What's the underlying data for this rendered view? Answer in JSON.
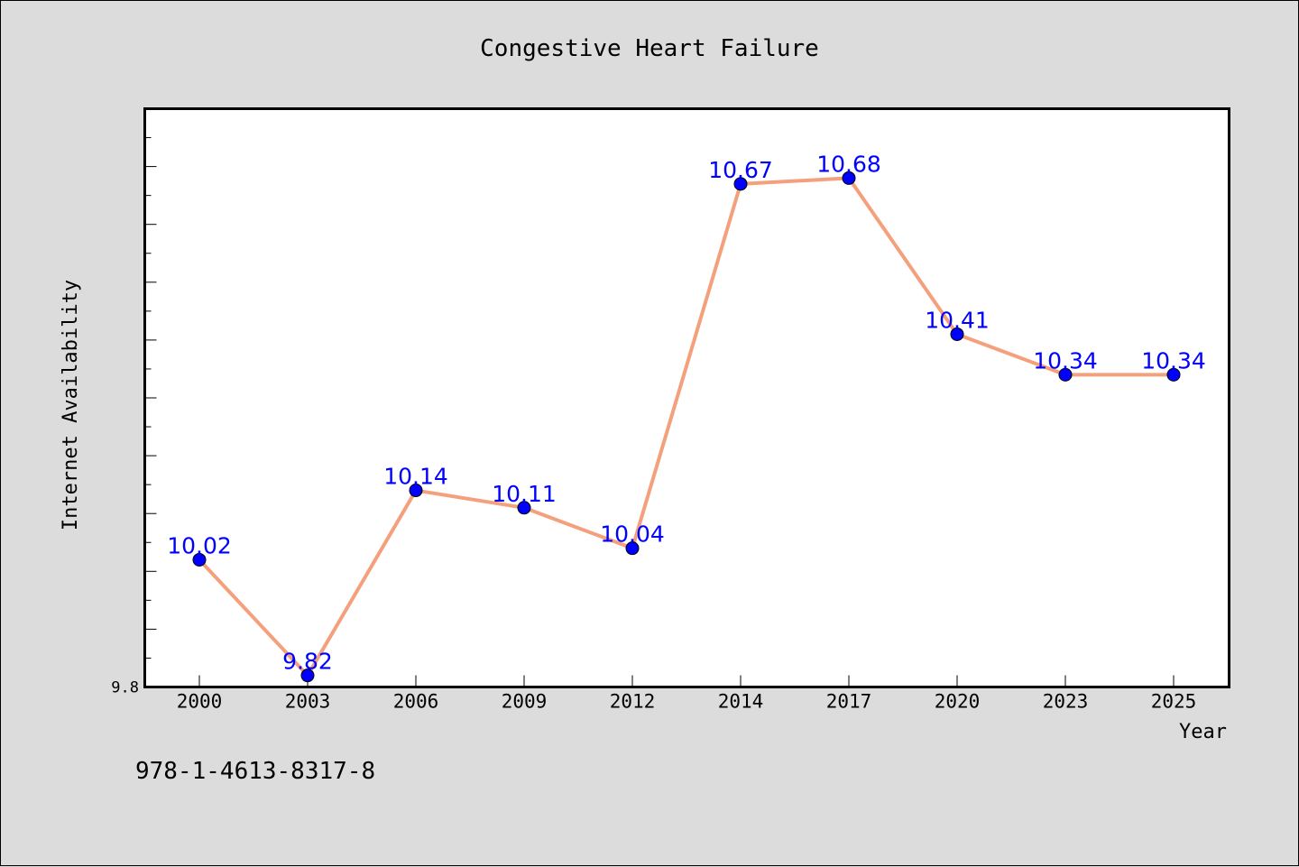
{
  "footer": {
    "isbn": "978-1-4613-8317-8"
  },
  "colors": {
    "background": "#dcdcdc",
    "plot_background": "#ffffff",
    "line": "#f4a07c",
    "marker": "#0000ff",
    "data_label": "#0000ff"
  },
  "chart_data": {
    "type": "line",
    "title": "Congestive Heart Failure",
    "xlabel": "Year",
    "ylabel": "Internet Availability",
    "categories": [
      "2000",
      "2003",
      "2006",
      "2009",
      "2012",
      "2014",
      "2017",
      "2020",
      "2023",
      "2025"
    ],
    "series": [
      {
        "values": [
          10.02,
          9.82,
          10.14,
          10.11,
          10.04,
          10.67,
          10.68,
          10.41,
          10.34,
          10.34
        ],
        "data_labels": [
          "10.02",
          "9.82",
          "10.14",
          "10.11",
          "10.04",
          "10.67",
          "10.68",
          "10.41",
          "10.34",
          "10.34"
        ]
      }
    ],
    "ytick_labels": [
      {
        "value": 9.8,
        "label": "9.8"
      }
    ],
    "ylim": [
      9.8,
      10.8
    ],
    "y_minor_step": 0.05,
    "grid": false,
    "legend": "none",
    "marker": "circle",
    "data_labels_shown": true
  }
}
